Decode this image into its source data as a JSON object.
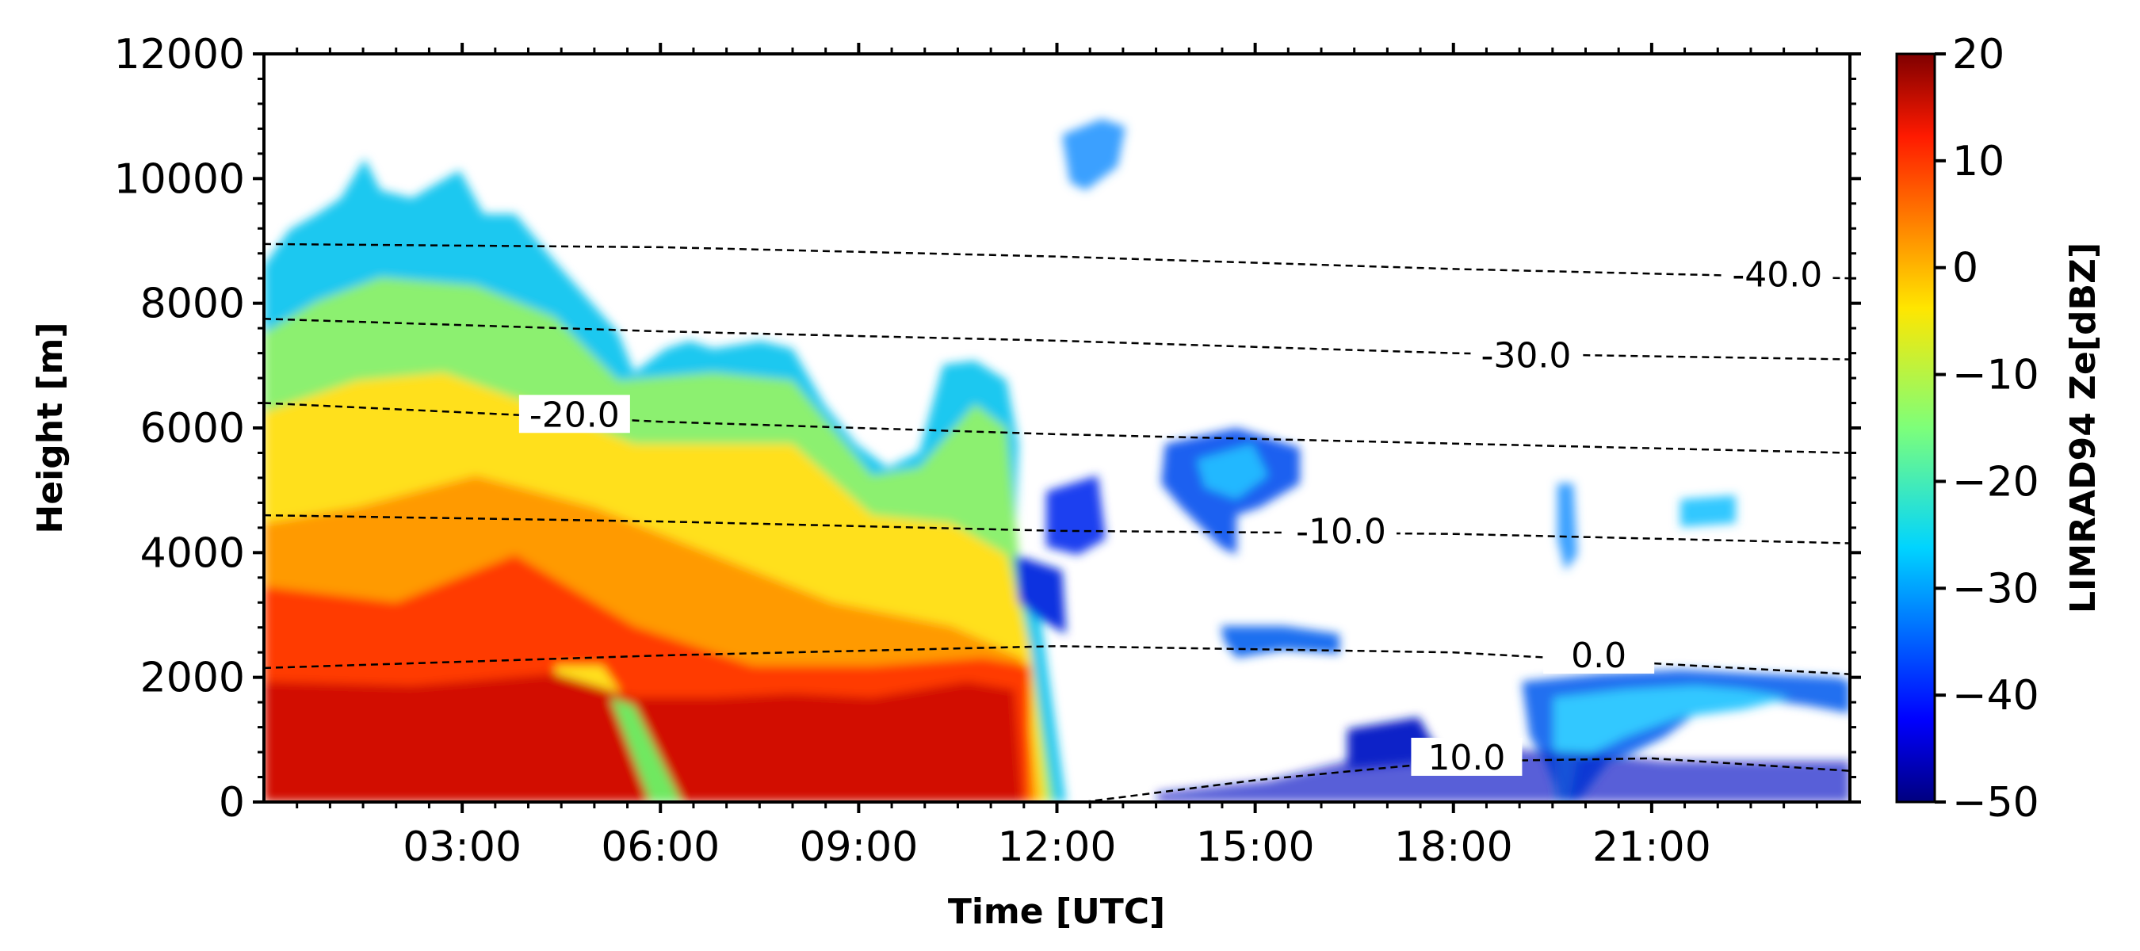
{
  "chart_data": {
    "type": "heatmap",
    "title": "",
    "xlabel": "Time [UTC]",
    "ylabel": "Height [m]",
    "colorbar_label": "LIMRAD94 Ze[dBZ]",
    "x_range_hours": [
      0,
      24
    ],
    "ylim": [
      0,
      12000
    ],
    "x_ticks": [
      "03:00",
      "06:00",
      "09:00",
      "12:00",
      "15:00",
      "18:00",
      "21:00"
    ],
    "x_tick_hours": [
      3,
      6,
      9,
      12,
      15,
      18,
      21
    ],
    "y_ticks": [
      0,
      2000,
      4000,
      6000,
      8000,
      10000,
      12000
    ],
    "colorbar_range": [
      -50,
      20
    ],
    "colorbar_ticks": [
      20,
      10,
      0,
      -10,
      -20,
      -30,
      -40,
      -50
    ],
    "colorbar_tick_labels": [
      "20",
      "10",
      "0",
      "−10",
      "−20",
      "−30",
      "−40",
      "−50"
    ],
    "colormap": "jet",
    "isotherms": [
      {
        "label": "-40.0",
        "points": [
          [
            0,
            8950
          ],
          [
            6,
            8900
          ],
          [
            12,
            8750
          ],
          [
            18,
            8550
          ],
          [
            24,
            8400
          ]
        ],
        "label_at": [
          22.9,
          8450
        ]
      },
      {
        "label": "-30.0",
        "points": [
          [
            0,
            7750
          ],
          [
            6,
            7550
          ],
          [
            12,
            7400
          ],
          [
            18,
            7200
          ],
          [
            24,
            7100
          ]
        ],
        "label_at": [
          19.1,
          7150
        ]
      },
      {
        "label": "-20.0",
        "points": [
          [
            0,
            6400
          ],
          [
            6,
            6100
          ],
          [
            12,
            5900
          ],
          [
            18,
            5750
          ],
          [
            24,
            5600
          ]
        ],
        "label_at": [
          4.7,
          6200
        ]
      },
      {
        "label": "-10.0",
        "points": [
          [
            0,
            4600
          ],
          [
            6,
            4500
          ],
          [
            12,
            4350
          ],
          [
            18,
            4300
          ],
          [
            24,
            4150
          ]
        ],
        "label_at": [
          16.3,
          4330
        ]
      },
      {
        "label": "0.0",
        "points": [
          [
            0,
            2150
          ],
          [
            6,
            2350
          ],
          [
            12,
            2500
          ],
          [
            18,
            2400
          ],
          [
            24,
            2050
          ]
        ],
        "label_at": [
          20.2,
          2340
        ]
      },
      {
        "label": "10.0",
        "points": [
          [
            12.4,
            0
          ],
          [
            15,
            350
          ],
          [
            18,
            650
          ],
          [
            21,
            700
          ],
          [
            24,
            500
          ]
        ],
        "label_at": [
          18.2,
          700
        ]
      }
    ]
  }
}
